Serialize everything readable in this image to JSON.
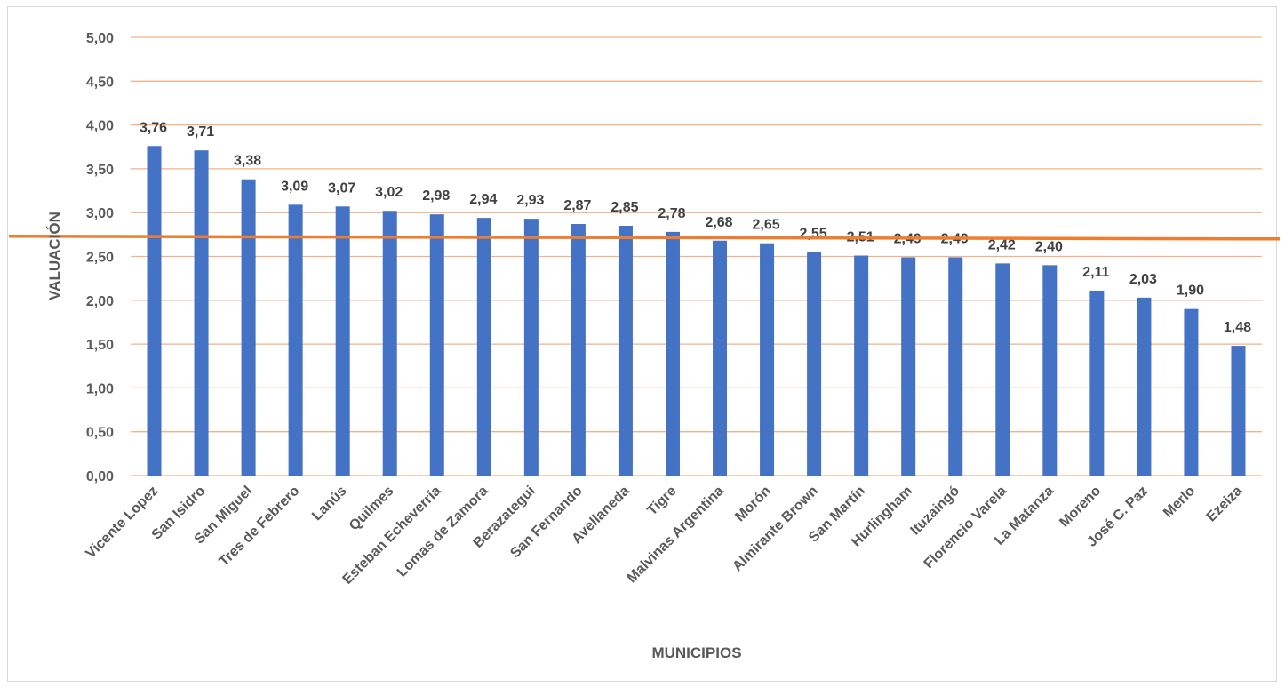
{
  "colors": {
    "bar": "#4472C4",
    "gridline": "#F4B183",
    "reference_line": "#ED7D31",
    "text": "#595959",
    "data_label": "#404040"
  },
  "chart_data": {
    "type": "bar",
    "xlabel": "MUNICIPIOS",
    "ylabel": "VALUACIÓN",
    "ylim": [
      0,
      5
    ],
    "yticks": [
      "0,00",
      "0,50",
      "1,00",
      "1,50",
      "2,00",
      "2,50",
      "3,00",
      "3,50",
      "4,00",
      "4,50",
      "5,00"
    ],
    "grid": true,
    "legend": "none",
    "categories": [
      "Vicente Lopez",
      "San Isidro",
      "San Miguel",
      "Tres de Febrero",
      "Lanús",
      "Quilmes",
      "Esteban Echeverría",
      "Lomas de Zamora",
      "Berazategui",
      "San Fernando",
      "Avellaneda",
      "Tigre",
      "Malvinas Argentina",
      "Morón",
      "Almirante Brown",
      "San Martín",
      "Hurlingham",
      "Ituzaingó",
      "Florencio Varela",
      "La Matanza",
      "Moreno",
      "José C. Paz",
      "Merlo",
      "Ezeiza"
    ],
    "values": [
      3.76,
      3.71,
      3.38,
      3.09,
      3.07,
      3.02,
      2.98,
      2.94,
      2.93,
      2.87,
      2.85,
      2.78,
      2.68,
      2.65,
      2.55,
      2.51,
      2.49,
      2.49,
      2.42,
      2.4,
      2.11,
      2.03,
      1.9,
      1.48
    ],
    "data_labels": [
      "3,76",
      "3,71",
      "3,38",
      "3,09",
      "3,07",
      "3,02",
      "2,98",
      "2,94",
      "2,93",
      "2,87",
      "2,85",
      "2,78",
      "2,68",
      "2,65",
      "2,55",
      "2,51",
      "2,49",
      "2,49",
      "2,42",
      "2,40",
      "2,11",
      "2,03",
      "1,90",
      "1,48"
    ],
    "reference_line": {
      "value": 2.72
    }
  }
}
